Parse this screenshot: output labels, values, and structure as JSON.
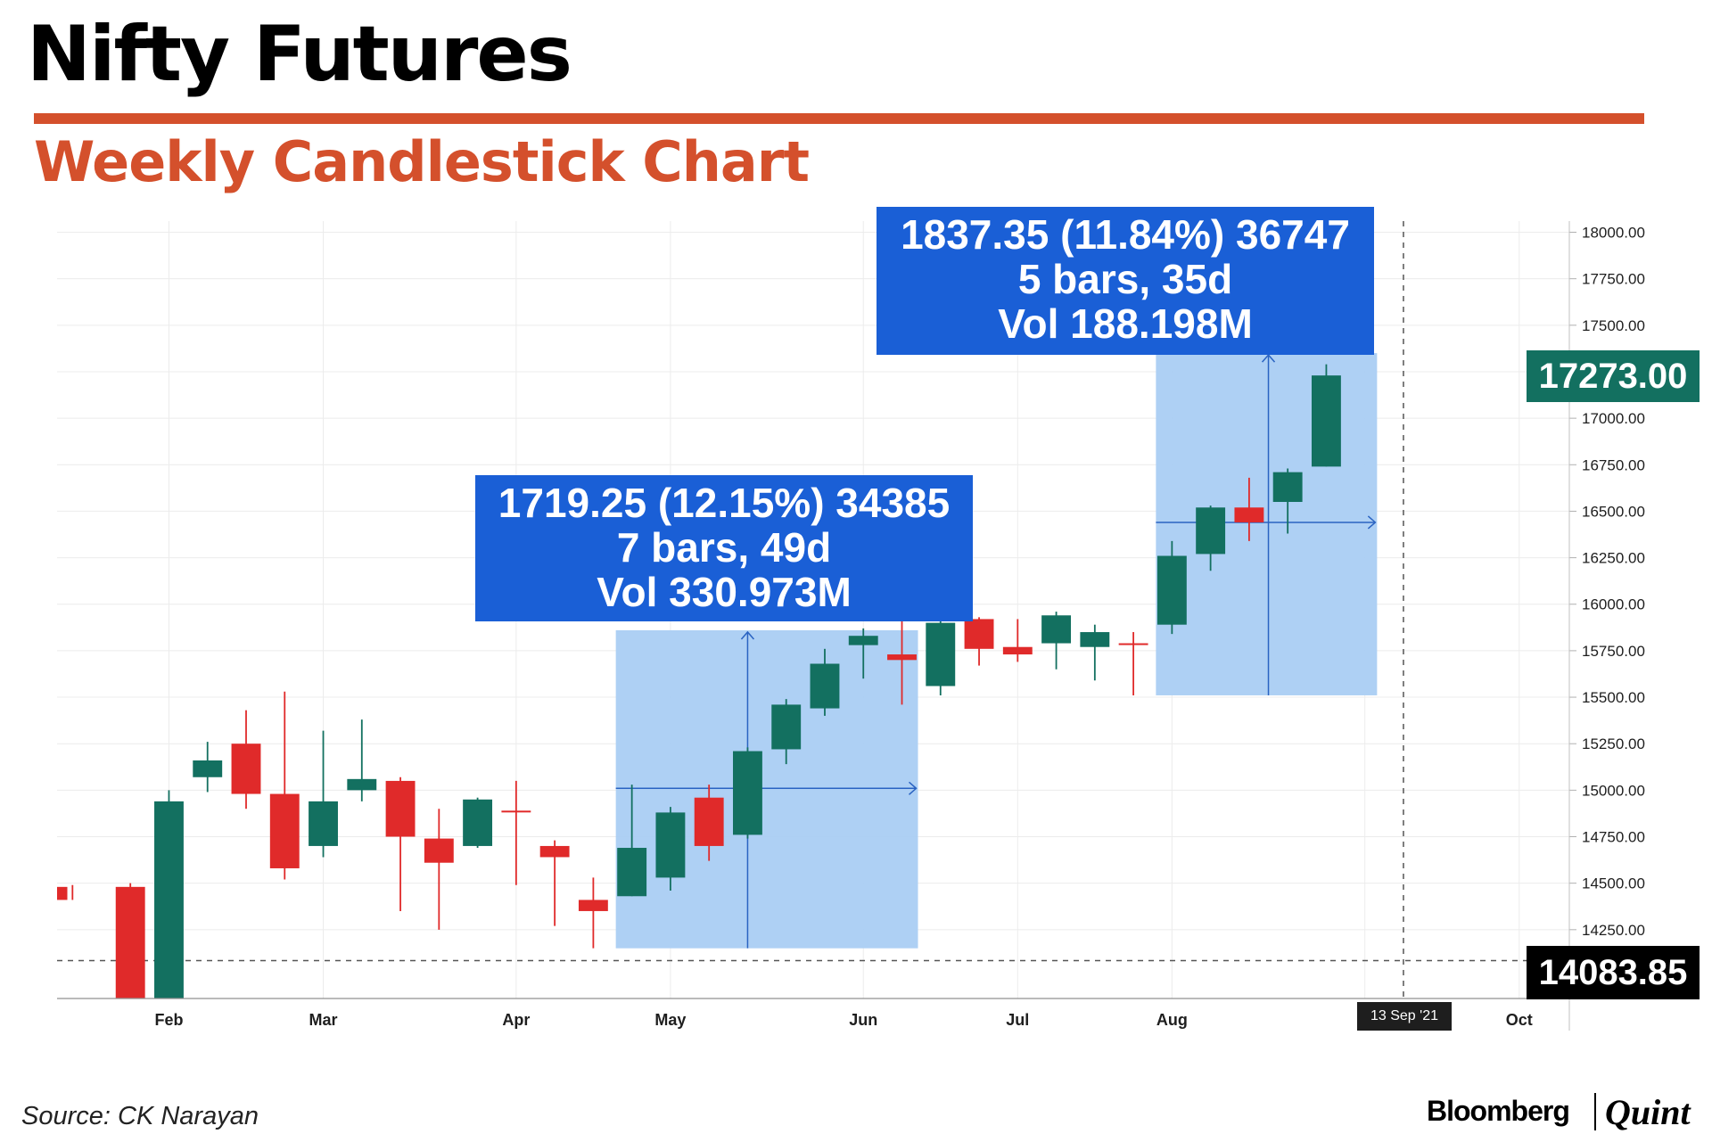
{
  "header": {
    "title": "Nifty Futures",
    "subtitle": "Weekly Candlestick Chart"
  },
  "footer": {
    "source": "Source: CK Narayan",
    "brand_bloomberg": "Bloomberg",
    "brand_quint": "Quint"
  },
  "colors": {
    "accent": "#d4502c",
    "bull": "#137060",
    "bear": "#e02a2a",
    "callout": "#1a5fd6",
    "range_fill": "#aacdf3",
    "range_line": "#2a63c2"
  },
  "callouts": [
    {
      "line1": "1719.25 (12.15%) 34385",
      "line2": "7 bars, 49d",
      "line3": "Vol 330.973M"
    },
    {
      "line1": "1837.35 (11.84%) 36747",
      "line2": "5 bars, 35d",
      "line3": "Vol 188.198M"
    }
  ],
  "price_tags": {
    "last": "17273.00",
    "low": "14083.85"
  },
  "date_tag": "13 Sep '21",
  "chart_data": {
    "type": "candlestick",
    "title": "Weekly Candlestick Chart",
    "y_ticks": [
      "14250.00",
      "14500.00",
      "14750.00",
      "15000.00",
      "15250.00",
      "15500.00",
      "15750.00",
      "16000.00",
      "16250.00",
      "16500.00",
      "16750.00",
      "17000.00",
      "17250.00",
      "17500.00",
      "17750.00",
      "18000.00"
    ],
    "ylim": [
      13880,
      18060
    ],
    "x_months": [
      {
        "label": "Feb",
        "x": 1
      },
      {
        "label": "Mar",
        "x": 5
      },
      {
        "label": "Apr",
        "x": 10
      },
      {
        "label": "May",
        "x": 14
      },
      {
        "label": "Jun",
        "x": 19
      },
      {
        "label": "Jul",
        "x": 23
      },
      {
        "label": "Aug",
        "x": 27
      },
      {
        "label": "S",
        "x": 32
      },
      {
        "label": "Oct",
        "x": 36
      }
    ],
    "x_range": [
      -1.9,
      37.3
    ],
    "candles": [
      {
        "x": -1.5,
        "o": 14480,
        "h": 14490,
        "l": 14410,
        "c": 14410
      },
      {
        "x": 0,
        "o": 14480,
        "h": 14500,
        "l": 13880,
        "c": 13880
      },
      {
        "x": 1,
        "o": 13880,
        "h": 15000,
        "l": 13880,
        "c": 14940
      },
      {
        "x": 2,
        "o": 15070,
        "h": 15260,
        "l": 14990,
        "c": 15160
      },
      {
        "x": 3,
        "o": 15250,
        "h": 15430,
        "l": 14900,
        "c": 14980
      },
      {
        "x": 4,
        "o": 14980,
        "h": 15530,
        "l": 14520,
        "c": 14580
      },
      {
        "x": 5,
        "o": 14700,
        "h": 15320,
        "l": 14640,
        "c": 14940
      },
      {
        "x": 6,
        "o": 15000,
        "h": 15380,
        "l": 14940,
        "c": 15060
      },
      {
        "x": 7,
        "o": 15050,
        "h": 15070,
        "l": 14350,
        "c": 14750
      },
      {
        "x": 8,
        "o": 14740,
        "h": 14900,
        "l": 14250,
        "c": 14610
      },
      {
        "x": 9,
        "o": 14700,
        "h": 14960,
        "l": 14690,
        "c": 14950
      },
      {
        "x": 10,
        "o": 14890,
        "h": 15050,
        "l": 14490,
        "c": 14890
      },
      {
        "x": 11,
        "o": 14700,
        "h": 14730,
        "l": 14270,
        "c": 14640
      },
      {
        "x": 12,
        "o": 14410,
        "h": 14530,
        "l": 14150,
        "c": 14350
      },
      {
        "x": 13,
        "o": 14430,
        "h": 15030,
        "l": 14430,
        "c": 14690
      },
      {
        "x": 14,
        "o": 14530,
        "h": 14910,
        "l": 14460,
        "c": 14880
      },
      {
        "x": 15,
        "o": 14960,
        "h": 15030,
        "l": 14620,
        "c": 14700
      },
      {
        "x": 16,
        "o": 14760,
        "h": 15230,
        "l": 14740,
        "c": 15210
      },
      {
        "x": 17,
        "o": 15220,
        "h": 15490,
        "l": 15140,
        "c": 15460
      },
      {
        "x": 18,
        "o": 15440,
        "h": 15760,
        "l": 15400,
        "c": 15680
      },
      {
        "x": 19,
        "o": 15780,
        "h": 15870,
        "l": 15600,
        "c": 15830
      },
      {
        "x": 20,
        "o": 15730,
        "h": 15910,
        "l": 15460,
        "c": 15700
      },
      {
        "x": 21,
        "o": 15560,
        "h": 15910,
        "l": 15510,
        "c": 15900
      },
      {
        "x": 22,
        "o": 15920,
        "h": 15930,
        "l": 15670,
        "c": 15760
      },
      {
        "x": 23,
        "o": 15770,
        "h": 15920,
        "l": 15690,
        "c": 15730
      },
      {
        "x": 24,
        "o": 15790,
        "h": 15960,
        "l": 15650,
        "c": 15940
      },
      {
        "x": 25,
        "o": 15770,
        "h": 15890,
        "l": 15590,
        "c": 15850
      },
      {
        "x": 26,
        "o": 15790,
        "h": 15850,
        "l": 15510,
        "c": 15790
      },
      {
        "x": 27,
        "o": 15890,
        "h": 16340,
        "l": 15840,
        "c": 16260
      },
      {
        "x": 28,
        "o": 16270,
        "h": 16530,
        "l": 16180,
        "c": 16520
      },
      {
        "x": 29,
        "o": 16520,
        "h": 16680,
        "l": 16340,
        "c": 16440
      },
      {
        "x": 30,
        "o": 16550,
        "h": 16730,
        "l": 16380,
        "c": 16710
      },
      {
        "x": 31,
        "o": 16740,
        "h": 17290,
        "l": 16740,
        "c": 17230
      }
    ],
    "ranges": [
      {
        "x0": 13,
        "x1": 20,
        "y0": 14150,
        "y1": 15860,
        "arrow_x": 16,
        "arrow_y": 15010
      },
      {
        "x0": 27,
        "x1": 31.9,
        "y0": 15510,
        "y1": 17350,
        "arrow_x": 29.5,
        "arrow_y": 16440
      }
    ],
    "reference_lines": {
      "low_price": 14083.85,
      "last_price": 17273.0,
      "cursor_x": 33
    }
  }
}
